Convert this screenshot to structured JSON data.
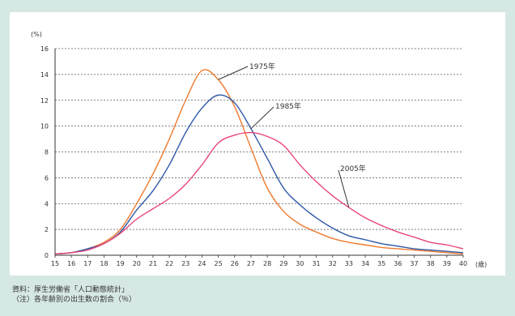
{
  "chart_data": {
    "type": "line",
    "y_unit": "(%)",
    "x_unit": "(歳)",
    "ylim": [
      0,
      16
    ],
    "yticks": [
      0,
      2,
      4,
      6,
      8,
      10,
      12,
      14,
      16
    ],
    "x": [
      15,
      16,
      17,
      18,
      19,
      20,
      21,
      22,
      23,
      24,
      25,
      26,
      27,
      28,
      29,
      30,
      31,
      32,
      33,
      34,
      35,
      36,
      37,
      38,
      39,
      40
    ],
    "x_tick_labels": [
      "15",
      "16",
      "17",
      "18",
      "19",
      "20",
      "21",
      "22",
      "23",
      "24",
      "25",
      "26",
      "27",
      "28",
      "29",
      "30",
      "31",
      "32",
      "33",
      "34",
      "35",
      "36",
      "37",
      "38",
      "39",
      "40"
    ],
    "grid": true,
    "series": [
      {
        "name": "1975年",
        "color": "#ee7a2e",
        "values": [
          0.1,
          0.2,
          0.5,
          1.0,
          2.0,
          4.0,
          6.3,
          9.0,
          12.0,
          14.3,
          13.6,
          11.5,
          8.3,
          5.2,
          3.4,
          2.4,
          1.8,
          1.3,
          1.0,
          0.8,
          0.6,
          0.5,
          0.4,
          0.3,
          0.2,
          0.1
        ]
      },
      {
        "name": "1985年",
        "color": "#2e58a6",
        "values": [
          0.1,
          0.2,
          0.5,
          0.9,
          1.8,
          3.5,
          5.0,
          7.0,
          9.5,
          11.4,
          12.4,
          11.8,
          9.8,
          7.5,
          5.2,
          3.9,
          2.9,
          2.1,
          1.5,
          1.2,
          0.9,
          0.7,
          0.5,
          0.4,
          0.3,
          0.2
        ]
      },
      {
        "name": "2005年",
        "color": "#e8457a",
        "values": [
          0.1,
          0.2,
          0.4,
          0.9,
          1.7,
          2.8,
          3.6,
          4.4,
          5.5,
          7.0,
          8.7,
          9.3,
          9.5,
          9.2,
          8.5,
          7.0,
          5.7,
          4.6,
          3.7,
          2.9,
          2.3,
          1.8,
          1.4,
          1.0,
          0.8,
          0.5
        ]
      }
    ]
  },
  "callouts": {
    "c1975": "1975年",
    "c1985": "1985年",
    "c2005": "2005年"
  },
  "notes": {
    "line1": "資料：厚生労働省「人口動態統計」",
    "line2": "（注）各年齢別の出生数の割合（％）"
  }
}
